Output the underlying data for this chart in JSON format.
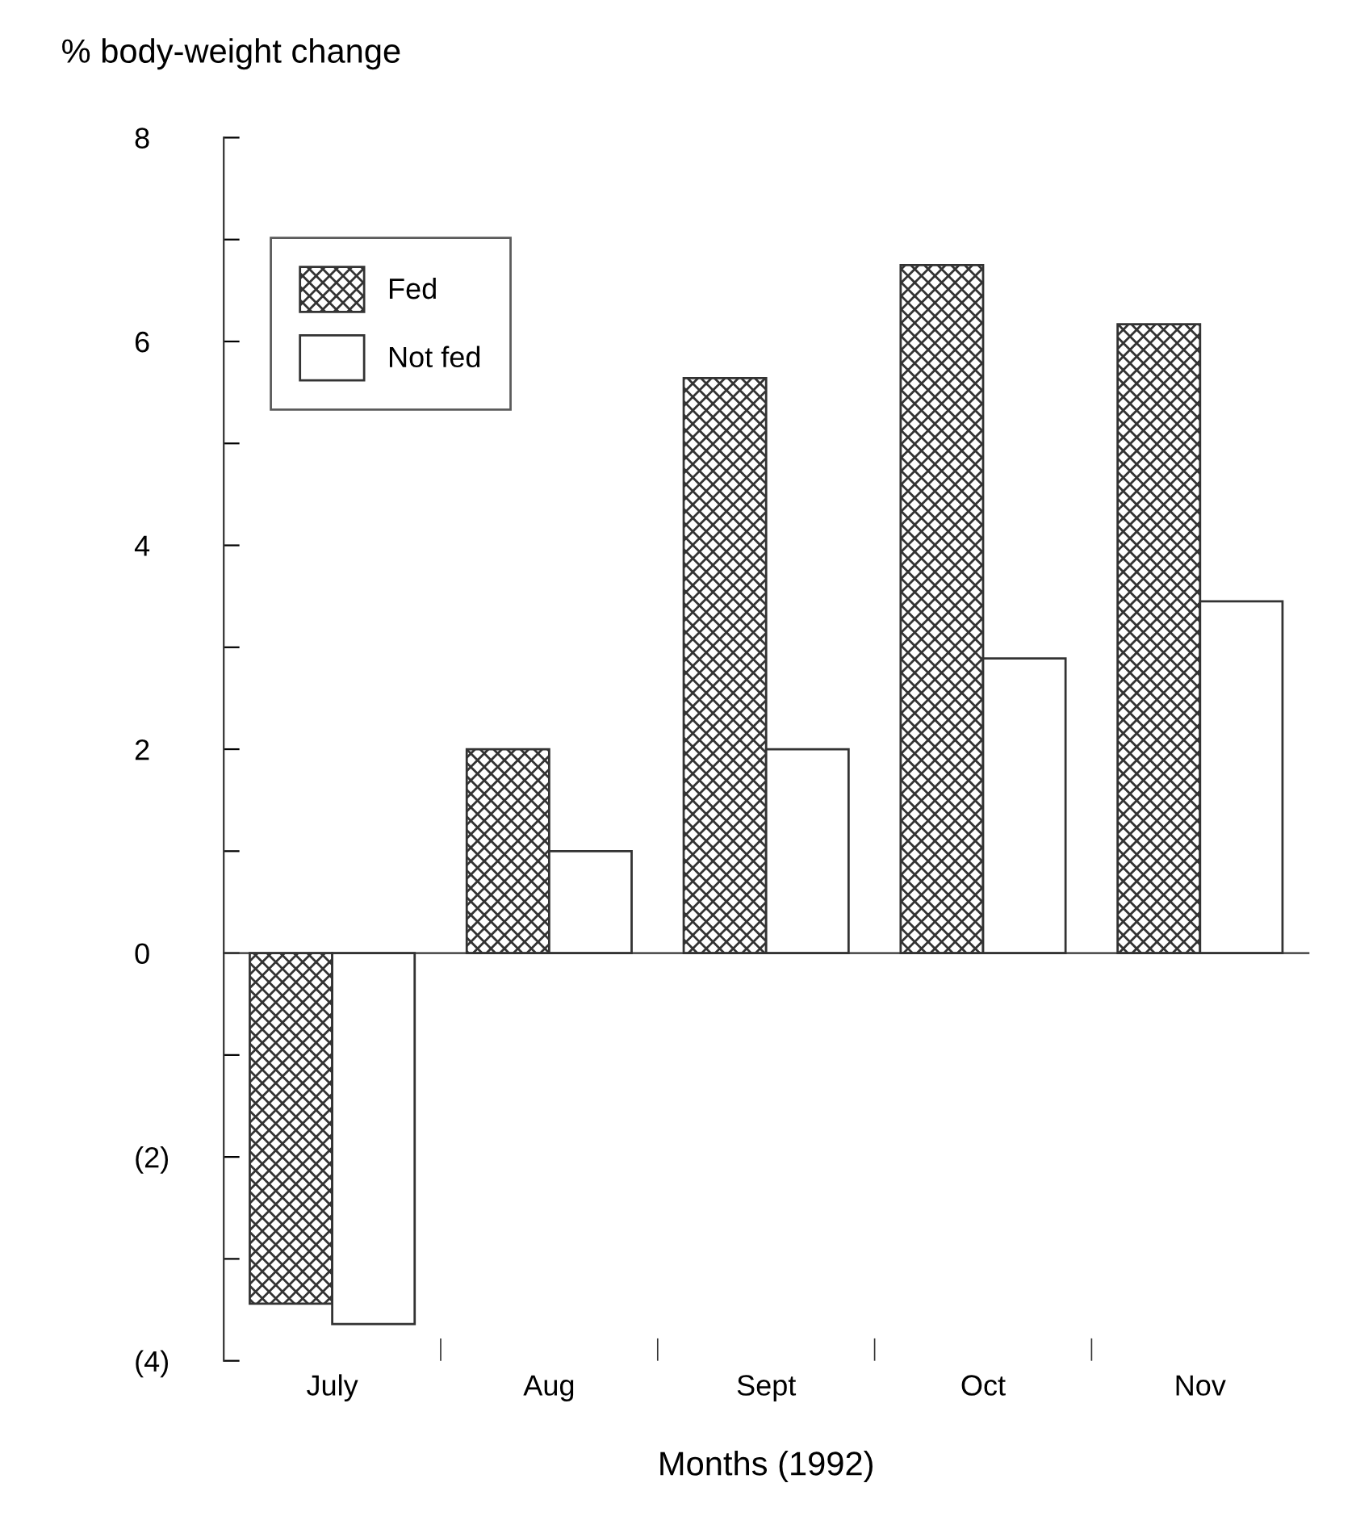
{
  "chart_data": {
    "type": "bar",
    "ylabel": "% body-weight change",
    "xlabel": "Months (1992)",
    "categories": [
      "July",
      "Aug",
      "Sept",
      "Oct",
      "Nov"
    ],
    "series": [
      {
        "name": "Fed",
        "color": "#333333",
        "values": [
          -3.44,
          2.0,
          5.64,
          6.75,
          6.17
        ]
      },
      {
        "name": "Not fed",
        "color": "#ffffff",
        "values": [
          -3.64,
          1.0,
          2.0,
          2.89,
          3.45
        ]
      }
    ],
    "ylim": [
      -4,
      8
    ],
    "yticks": [
      {
        "value": -4,
        "label": "(4)"
      },
      {
        "value": -3,
        "label": null
      },
      {
        "value": -2,
        "label": "(2)"
      },
      {
        "value": -1,
        "label": null
      },
      0,
      {
        "value": 1,
        "label": null
      },
      2,
      {
        "value": 3,
        "label": null
      },
      4,
      {
        "value": 5,
        "label": null
      },
      6,
      {
        "value": 7,
        "label": null
      },
      8
    ],
    "legend": "top left"
  }
}
